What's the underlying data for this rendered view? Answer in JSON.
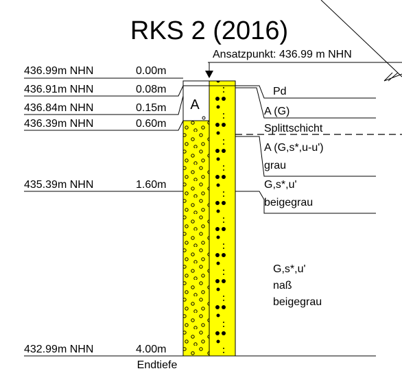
{
  "title": "RKS 2 (2016)",
  "reference": "Ansatzpunkt: 436.99 m NHN",
  "depths": [
    {
      "level": "436.99m NHN",
      "depth": "0.00m"
    },
    {
      "level": "436.91m NHN",
      "depth": "0.08m"
    },
    {
      "level": "436.84m NHN",
      "depth": "0.15m"
    },
    {
      "level": "436.39m NHN",
      "depth": "0.60m"
    },
    {
      "level": "435.39m NHN",
      "depth": "1.60m"
    },
    {
      "level": "432.99m NHN",
      "depth": "4.00m"
    }
  ],
  "column_label": "A",
  "layers": [
    {
      "lines": [
        "Pd"
      ]
    },
    {
      "lines": [
        "A (G)"
      ]
    },
    {
      "lines": [
        "Splittschicht"
      ]
    },
    {
      "lines": [
        "A (G,s*,u-u')",
        "grau"
      ]
    },
    {
      "lines": [
        "G,s*,u'",
        "beigegrau"
      ]
    },
    {
      "lines": [
        "G,s*,u'",
        "naß",
        "beigegrau"
      ]
    }
  ],
  "end_label": "Endtiefe"
}
